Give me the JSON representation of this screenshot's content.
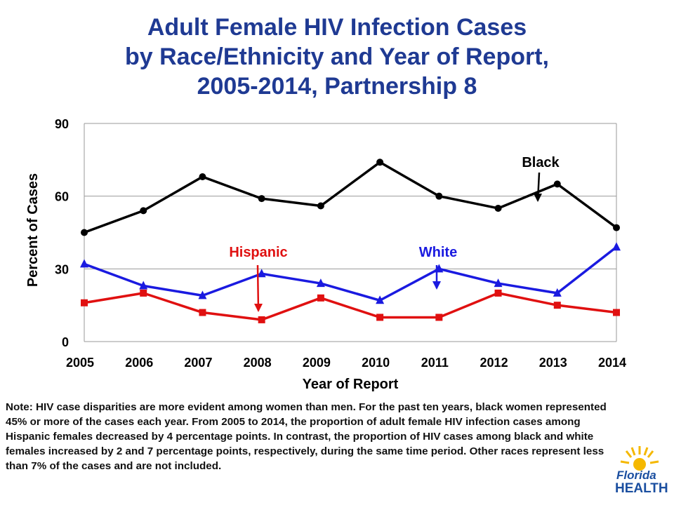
{
  "title": {
    "line1": "Adult Female HIV Infection Cases",
    "line2": "by Race/Ethnicity and Year of Report,",
    "line3": "2005-2014, Partnership 8"
  },
  "chart_data": {
    "type": "line",
    "xlabel": "Year of Report",
    "ylabel": "Percent of Cases",
    "ylim": [
      0,
      90
    ],
    "yticks": [
      0,
      30,
      60,
      90
    ],
    "grid": true,
    "categories": [
      "2005",
      "2006",
      "2007",
      "2008",
      "2009",
      "2010",
      "2011",
      "2012",
      "2013",
      "2014"
    ],
    "series": [
      {
        "name": "Black",
        "color": "#000000",
        "marker": "circle",
        "values": [
          45,
          54,
          68,
          59,
          56,
          74,
          60,
          55,
          65,
          47
        ]
      },
      {
        "name": "White",
        "color": "#1a1ae0",
        "marker": "triangle",
        "values": [
          32,
          23,
          19,
          28,
          24,
          17,
          30,
          24,
          20,
          39
        ]
      },
      {
        "name": "Hispanic",
        "color": "#e01010",
        "marker": "square",
        "values": [
          16,
          20,
          12,
          9,
          18,
          10,
          10,
          20,
          15,
          12
        ]
      }
    ]
  },
  "note": "Note:  HIV case disparities are more evident among women than men.  For the past ten years, black women represented 45% or more of the cases each year.  From 2005 to 2014, the proportion of adult female HIV infection cases among Hispanic females decreased by 4 percentage points.  In contrast, the proportion of HIV cases among black and white females increased by 2 and 7 percentage points, respectively, during the same time period. Other races represent less than 7% of the cases and are not included.",
  "logo": {
    "line1": "Florida",
    "line2": "HEALTH",
    "colors": {
      "sun": "#f5b800",
      "blue": "#1b4fa0"
    }
  }
}
